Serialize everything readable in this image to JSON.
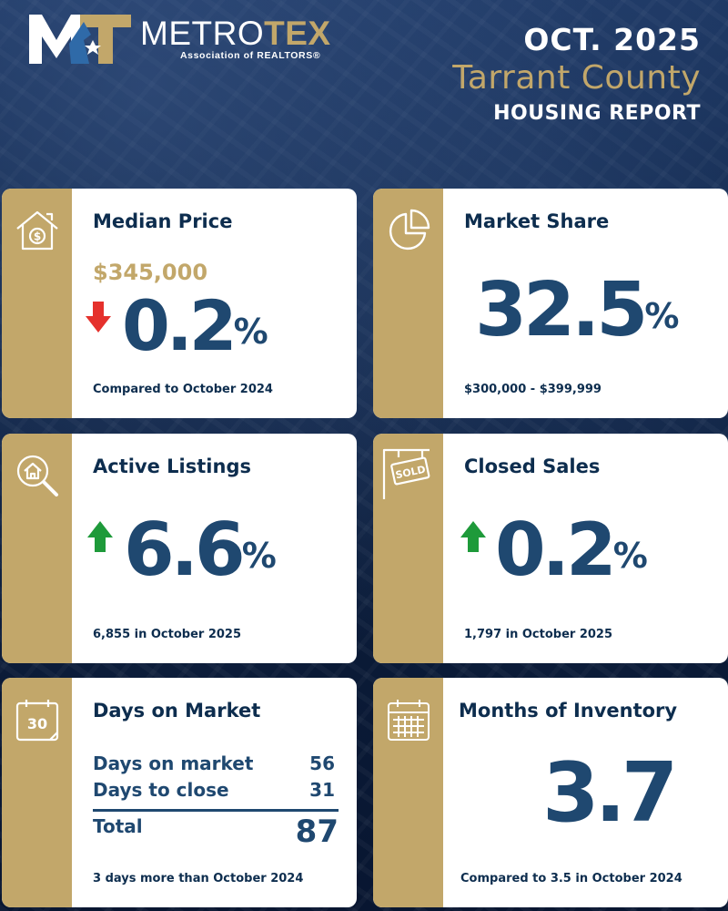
{
  "brand": {
    "name_part1": "METRO",
    "name_part2": "TEX",
    "tagline": "Association of REALTORS®"
  },
  "report": {
    "month": "OCT. 2025",
    "county": "Tarrant County",
    "title": "HOUSING REPORT"
  },
  "colors": {
    "navy": "#0d2d4e",
    "value_blue": "#1f4870",
    "gold": "#c2a76a",
    "down_red": "#e5312c",
    "up_green": "#1e9a3a"
  },
  "cards": {
    "median_price": {
      "title": "Median Price",
      "icon": "house-dollar-icon",
      "price": "$345,000",
      "direction": "down",
      "change_value": "0.2",
      "change_unit": "%",
      "footnote": "Compared to October 2024"
    },
    "market_share": {
      "title": "Market Share",
      "icon": "pie-chart-icon",
      "value": "32.5",
      "unit": "%",
      "footnote": "$300,000 - $399,999"
    },
    "active_listings": {
      "title": "Active Listings",
      "icon": "house-search-icon",
      "direction": "up",
      "change_value": "6.6",
      "change_unit": "%",
      "footnote": "6,855 in October 2025"
    },
    "closed_sales": {
      "title": "Closed Sales",
      "icon": "sold-sign-icon",
      "direction": "up",
      "change_value": "0.2",
      "change_unit": "%",
      "footnote": "1,797 in October 2025"
    },
    "days_on_market": {
      "title": "Days on Market",
      "icon": "calendar-30-icon",
      "calendar_number": "30",
      "rows": [
        {
          "label": "Days on market",
          "value": "56"
        },
        {
          "label": "Days to close",
          "value": "31"
        }
      ],
      "total_label": "Total",
      "total_value": "87",
      "footnote": "3 days more than October 2024"
    },
    "months_inventory": {
      "title": "Months of Inventory",
      "icon": "calendar-grid-icon",
      "value": "3.7",
      "footnote": "Compared to 3.5 in October 2024"
    }
  }
}
